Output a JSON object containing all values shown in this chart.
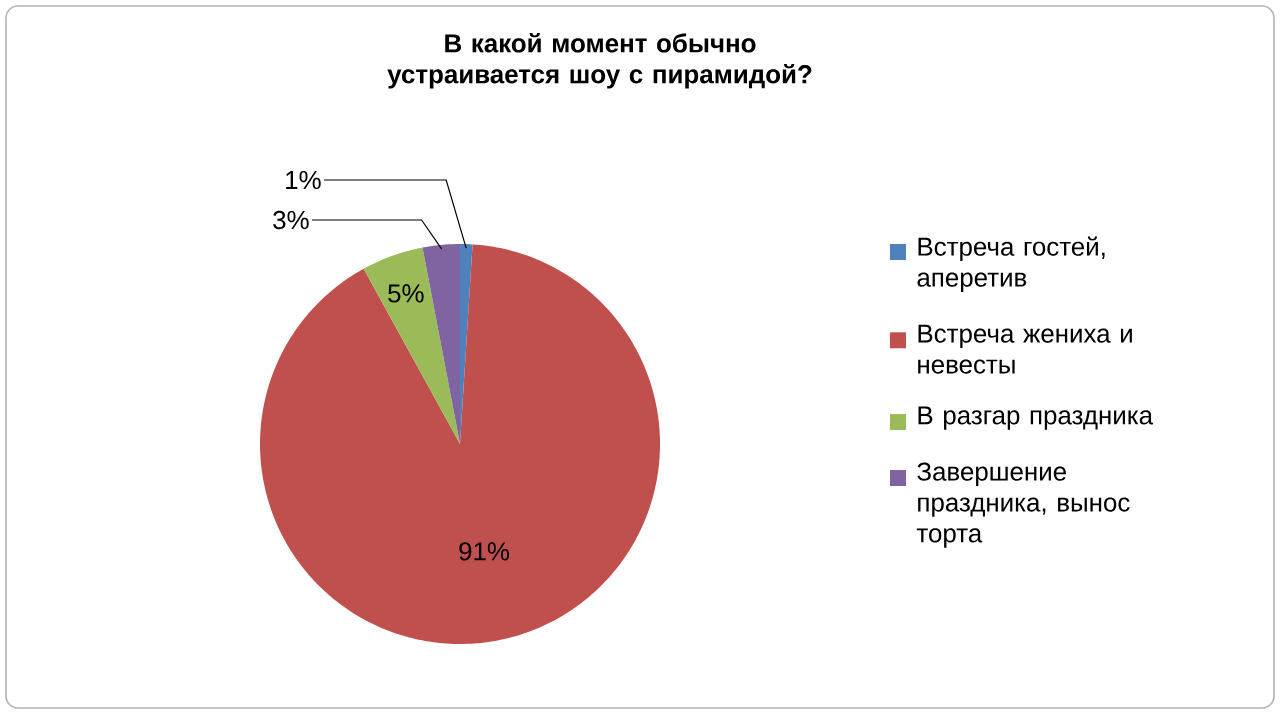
{
  "chart_data": {
    "type": "pie",
    "title": "В какой момент обычно устраивается шоу с пирамидой?",
    "categories": [
      "Встреча гостей, аперетив",
      "Встреча жениха и невесты",
      "В разгар праздника",
      "Завершение праздника, вынос торта"
    ],
    "values": [
      1,
      91,
      5,
      3
    ],
    "value_labels": [
      "1%",
      "91%",
      "5%",
      "3%"
    ],
    "colors": [
      "#4f81bd",
      "#c0504d",
      "#9bbb59",
      "#8064a2"
    ],
    "legend": "right"
  }
}
